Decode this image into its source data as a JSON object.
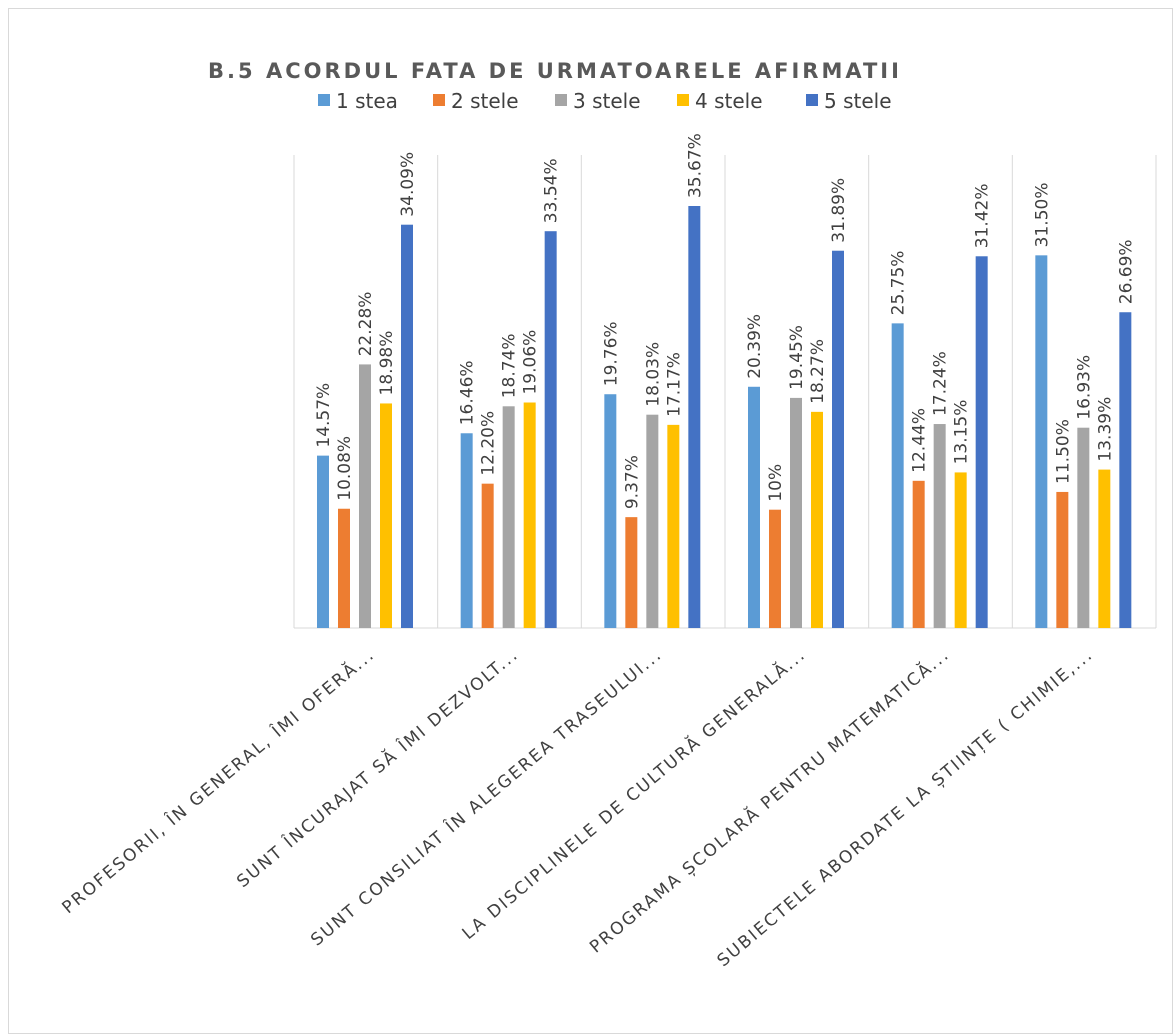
{
  "chart_data": {
    "type": "bar",
    "title": "B.5 ACORDUL FATA DE URMATOARELE AFIRMATII",
    "xlabel": "",
    "ylabel": "",
    "ylim": [
      0,
      40
    ],
    "grid": "vertical category separators only",
    "legend_position": "top",
    "categories": [
      "PROFESORII, ÎN GENERAL, ÎMI OFERĂ...",
      "SUNT ÎNCURAJAT SĂ ÎMI DEZVOLT...",
      "SUNT CONSILIAT ÎN ALEGEREA TRASEULUI...",
      "LA DISCIPLINELE DE CULTURĂ GENERALĂ...",
      "PROGRAMA ȘCOLARĂ PENTRU MATEMATICĂ...",
      "SUBIECTELE ABORDATE LA ȘTIINȚE ( CHIMIE,..."
    ],
    "series": [
      {
        "name": "1 stea",
        "color": "#5b9bd5",
        "values": [
          14.57,
          16.46,
          19.76,
          20.39,
          25.75,
          31.5
        ],
        "labels": [
          "14.57%",
          "16.46%",
          "19.76%",
          "20.39%",
          "25.75%",
          "31.50%"
        ]
      },
      {
        "name": "2 stele",
        "color": "#ed7d31",
        "values": [
          10.08,
          12.2,
          9.37,
          10.0,
          12.44,
          11.5
        ],
        "labels": [
          "10.08%",
          "12.20%",
          "9.37%",
          "10%",
          "12.44%",
          "11.50%"
        ]
      },
      {
        "name": "3 stele",
        "color": "#a5a5a5",
        "values": [
          22.28,
          18.74,
          18.03,
          19.45,
          17.24,
          16.93
        ],
        "labels": [
          "22.28%",
          "18.74%",
          "18.03%",
          "19.45%",
          "17.24%",
          "16.93%"
        ]
      },
      {
        "name": "4 stele",
        "color": "#ffc000",
        "values": [
          18.98,
          19.06,
          17.17,
          18.27,
          13.15,
          13.39
        ],
        "labels": [
          "18.98%",
          "19.06%",
          "17.17%",
          "18.27%",
          "13.15%",
          "13.39%"
        ]
      },
      {
        "name": "5 stele",
        "color": "#4472c4",
        "values": [
          34.09,
          33.54,
          35.67,
          31.89,
          31.42,
          26.69
        ],
        "labels": [
          "34.09%",
          "33.54%",
          "35.67%",
          "31.89%",
          "31.42%",
          "26.69%"
        ]
      }
    ]
  }
}
